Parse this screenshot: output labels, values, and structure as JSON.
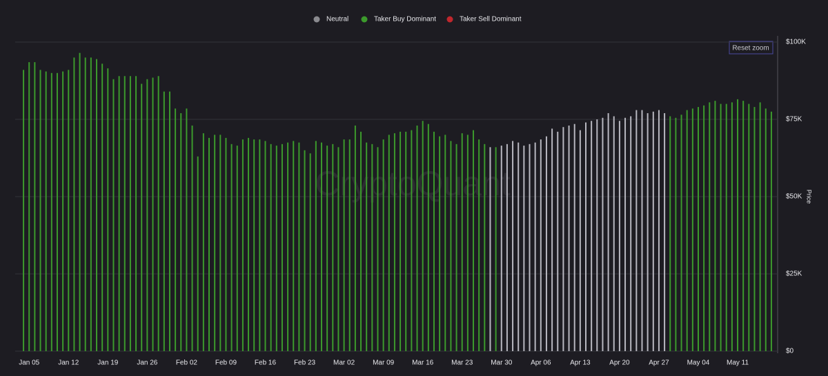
{
  "chart_data": {
    "type": "bar",
    "y_axis_label": "Price",
    "watermark": "CryptoQuant",
    "button": "Reset zoom",
    "ylim": [
      0,
      100000
    ],
    "yticks": [
      {
        "value": 0,
        "label": "$0"
      },
      {
        "value": 25000,
        "label": "$25K"
      },
      {
        "value": 50000,
        "label": "$50K"
      },
      {
        "value": 75000,
        "label": "$75K"
      },
      {
        "value": 100000,
        "label": "$100K"
      }
    ],
    "grid": true,
    "categories": [
      null,
      "Jan 05",
      null,
      null,
      null,
      null,
      null,
      null,
      "Jan 12",
      null,
      null,
      null,
      null,
      null,
      null,
      "Jan 19",
      null,
      null,
      null,
      null,
      null,
      null,
      "Jan 26",
      null,
      null,
      null,
      null,
      null,
      null,
      "Feb 02",
      null,
      null,
      null,
      null,
      null,
      null,
      "Feb 09",
      null,
      null,
      null,
      null,
      null,
      null,
      "Feb 16",
      null,
      null,
      null,
      null,
      null,
      null,
      "Feb 23",
      null,
      null,
      null,
      null,
      null,
      null,
      "Mar 02",
      null,
      null,
      null,
      null,
      null,
      null,
      "Mar 09",
      null,
      null,
      null,
      null,
      null,
      null,
      "Mar 16",
      null,
      null,
      null,
      null,
      null,
      null,
      "Mar 23",
      null,
      null,
      null,
      null,
      null,
      null,
      "Mar 30",
      null,
      null,
      null,
      null,
      null,
      null,
      "Apr 06",
      null,
      null,
      null,
      null,
      null,
      null,
      "Apr 13",
      null,
      null,
      null,
      null,
      null,
      null,
      "Apr 20",
      null,
      null,
      null,
      null,
      null,
      null,
      "Apr 27",
      null,
      null,
      null,
      null,
      null,
      null,
      "May 04",
      null,
      null,
      null,
      null,
      null,
      null,
      "May 11",
      null,
      null,
      null,
      null,
      null,
      null
    ],
    "series": [
      {
        "name": "Neutral",
        "color": "#b8b8c0",
        "legend_color": "#8a8a8f",
        "values": [
          null,
          null,
          null,
          null,
          null,
          null,
          null,
          null,
          null,
          null,
          null,
          null,
          null,
          null,
          null,
          null,
          null,
          null,
          null,
          null,
          null,
          null,
          null,
          null,
          null,
          null,
          null,
          null,
          null,
          null,
          null,
          null,
          null,
          null,
          null,
          null,
          null,
          null,
          null,
          null,
          null,
          null,
          null,
          null,
          null,
          null,
          null,
          null,
          null,
          null,
          null,
          null,
          null,
          null,
          null,
          null,
          null,
          null,
          null,
          null,
          null,
          null,
          null,
          null,
          null,
          null,
          null,
          null,
          null,
          null,
          null,
          null,
          null,
          null,
          null,
          null,
          null,
          null,
          null,
          null,
          null,
          null,
          null,
          66000,
          null,
          66500,
          67000,
          68000,
          67500,
          66500,
          67000,
          67500,
          68500,
          69500,
          72000,
          71000,
          72500,
          73000,
          73500,
          71500,
          74000,
          74500,
          75000,
          75500,
          77000,
          76000,
          74500,
          75500,
          76000,
          78000,
          78000,
          77000,
          77500,
          78000,
          77000,
          null,
          null,
          null,
          null,
          null,
          null,
          null,
          null,
          null,
          null,
          null,
          null,
          null,
          null,
          null,
          null,
          null,
          null,
          null
        ]
      },
      {
        "name": "Taker Buy Dominant",
        "color": "#3c9a2c",
        "legend_color": "#3c9a2c",
        "values": [
          91000,
          93500,
          93500,
          91000,
          90500,
          90000,
          90000,
          90500,
          91000,
          95000,
          96500,
          95000,
          95000,
          94500,
          93000,
          91500,
          88000,
          89000,
          89000,
          89000,
          89000,
          86500,
          88000,
          88500,
          89000,
          84000,
          84000,
          78500,
          77000,
          78500,
          73000,
          63000,
          70500,
          69000,
          70000,
          70000,
          69000,
          67000,
          66500,
          68500,
          69000,
          68500,
          68500,
          68000,
          67000,
          66500,
          67000,
          67500,
          68000,
          67500,
          65000,
          64000,
          68000,
          67500,
          66500,
          67000,
          66000,
          68500,
          68500,
          73000,
          71000,
          67500,
          67000,
          66000,
          68500,
          70000,
          70500,
          71000,
          71000,
          71500,
          73000,
          74500,
          73500,
          71000,
          69500,
          70000,
          68000,
          67000,
          70500,
          70000,
          71500,
          68500,
          67000,
          null,
          66000,
          null,
          null,
          null,
          null,
          null,
          null,
          null,
          null,
          null,
          null,
          null,
          null,
          null,
          null,
          null,
          null,
          null,
          null,
          null,
          null,
          null,
          null,
          null,
          null,
          null,
          null,
          null,
          null,
          null,
          null,
          76000,
          75500,
          76500,
          78000,
          78500,
          79000,
          79500,
          80500,
          81000,
          80000,
          80000,
          80500,
          81500,
          81000,
          80000,
          79000,
          80500,
          78500,
          77500
        ]
      },
      {
        "name": "Taker Sell Dominant",
        "color": "#c0272d",
        "legend_color": "#c0272d",
        "values": [
          null,
          null,
          null,
          null,
          null,
          null,
          null,
          null,
          null,
          null,
          null,
          null,
          null,
          null,
          null,
          null,
          null,
          null,
          null,
          null,
          null,
          null,
          null,
          null,
          null,
          null,
          null,
          null,
          null,
          null,
          null,
          null,
          null,
          null,
          null,
          null,
          null,
          null,
          null,
          null,
          null,
          null,
          null,
          null,
          null,
          null,
          null,
          null,
          null,
          null,
          null,
          null,
          null,
          null,
          null,
          null,
          null,
          null,
          null,
          null,
          null,
          null,
          null,
          null,
          null,
          null,
          null,
          null,
          null,
          null,
          null,
          null,
          null,
          null,
          null,
          null,
          null,
          null,
          null,
          null,
          null,
          null,
          null,
          null,
          null,
          null,
          null,
          null,
          null,
          null,
          null,
          null,
          null,
          null,
          null,
          null,
          null,
          null,
          null,
          null,
          null,
          null,
          null,
          null,
          null,
          null,
          null,
          null,
          null,
          null,
          null,
          null,
          null,
          null,
          null,
          null,
          null,
          null,
          null,
          null,
          null,
          null,
          null,
          null,
          null,
          null,
          null,
          null,
          null,
          null,
          null,
          null,
          null,
          null
        ]
      }
    ]
  }
}
